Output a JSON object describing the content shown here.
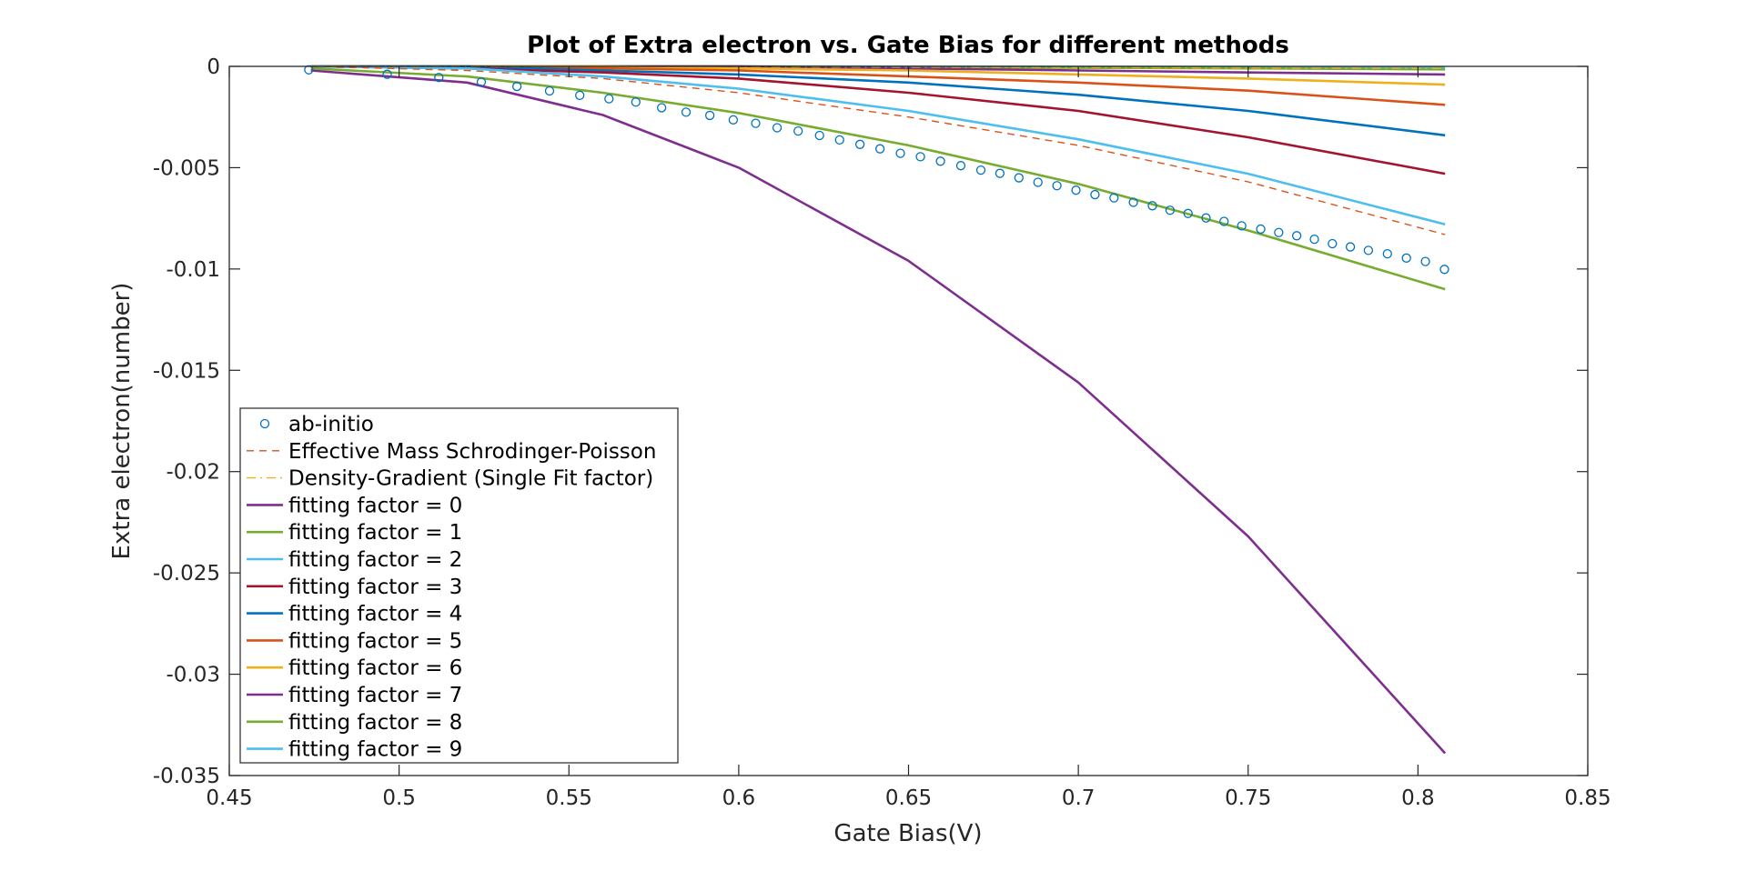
{
  "chart_data": {
    "type": "line",
    "title": "Plot of Extra electron vs. Gate Bias for different methods",
    "xlabel": "Gate Bias(V)",
    "ylabel": "Extra electron(number)",
    "xlim": [
      0.45,
      0.85
    ],
    "ylim": [
      -0.035,
      0
    ],
    "xticks": [
      0.45,
      0.5,
      0.55,
      0.6,
      0.65,
      0.7,
      0.75,
      0.8,
      0.85
    ],
    "xtick_labels": [
      "0.45",
      "0.5",
      "0.55",
      "0.6",
      "0.65",
      "0.7",
      "0.75",
      "0.8",
      "0.85"
    ],
    "yticks": [
      0,
      -0.005,
      -0.01,
      -0.015,
      -0.02,
      -0.025,
      -0.03,
      -0.035
    ],
    "ytick_labels": [
      "0",
      "-0.005",
      "-0.01",
      "-0.015",
      "-0.02",
      "-0.025",
      "-0.03",
      "-0.035"
    ],
    "grid": false,
    "legend_position": "bottom-left",
    "x": [
      0.474,
      0.52,
      0.56,
      0.6,
      0.65,
      0.7,
      0.75,
      0.808
    ],
    "series": [
      {
        "name": "ab-initio",
        "style": "markers",
        "color": "#0072BD",
        "points": [
          [
            0.4734,
            -0.00017
          ],
          [
            0.4965,
            -0.00039
          ],
          [
            0.5117,
            -0.00055
          ],
          [
            0.5242,
            -0.00077
          ],
          [
            0.5347,
            -0.00099
          ],
          [
            0.5443,
            -0.00121
          ],
          [
            0.5532,
            -0.00143
          ],
          [
            0.5618,
            -0.0016
          ],
          [
            0.5697,
            -0.00176
          ],
          [
            0.5773,
            -0.00204
          ],
          [
            0.5845,
            -0.00226
          ],
          [
            0.5915,
            -0.00242
          ],
          [
            0.5984,
            -0.00264
          ],
          [
            0.605,
            -0.00281
          ],
          [
            0.6113,
            -0.00303
          ],
          [
            0.6175,
            -0.00319
          ],
          [
            0.6238,
            -0.00341
          ],
          [
            0.6297,
            -0.00363
          ],
          [
            0.6357,
            -0.00385
          ],
          [
            0.6416,
            -0.00407
          ],
          [
            0.6476,
            -0.00429
          ],
          [
            0.6535,
            -0.00446
          ],
          [
            0.6594,
            -0.00468
          ],
          [
            0.6654,
            -0.0049
          ],
          [
            0.6713,
            -0.00512
          ],
          [
            0.6769,
            -0.00528
          ],
          [
            0.6825,
            -0.0055
          ],
          [
            0.6881,
            -0.00572
          ],
          [
            0.6937,
            -0.00589
          ],
          [
            0.6993,
            -0.00611
          ],
          [
            0.7049,
            -0.00633
          ],
          [
            0.7105,
            -0.00649
          ],
          [
            0.7162,
            -0.00671
          ],
          [
            0.7218,
            -0.00688
          ],
          [
            0.727,
            -0.0071
          ],
          [
            0.7323,
            -0.00726
          ],
          [
            0.7376,
            -0.00748
          ],
          [
            0.7429,
            -0.00765
          ],
          [
            0.7481,
            -0.00787
          ],
          [
            0.7537,
            -0.00803
          ],
          [
            0.759,
            -0.0082
          ],
          [
            0.7643,
            -0.00836
          ],
          [
            0.7695,
            -0.00853
          ],
          [
            0.7748,
            -0.00875
          ],
          [
            0.7801,
            -0.00891
          ],
          [
            0.7854,
            -0.00908
          ],
          [
            0.791,
            -0.00925
          ],
          [
            0.7966,
            -0.00946
          ],
          [
            0.8022,
            -0.00963
          ],
          [
            0.8078,
            -0.01002
          ]
        ]
      },
      {
        "name": "Effective Mass Schrodinger-Poisson",
        "style": "dashed",
        "color": "#D95319",
        "values": [
          0,
          -0.0002,
          -0.0006,
          -0.0013,
          -0.0025,
          -0.0039,
          -0.0057,
          -0.0083
        ]
      },
      {
        "name": "Density-Gradient (Single Fit factor)",
        "style": "dashdot",
        "color": "#EDB120",
        "values": [
          0,
          0,
          0,
          -2e-05,
          -4e-05,
          -6e-05,
          -8e-05,
          -0.0001
        ]
      },
      {
        "name": "fitting factor = 0",
        "style": "solid",
        "color": "#7E2F8E",
        "values": [
          -0.0002,
          -0.0008,
          -0.0024,
          -0.005,
          -0.0096,
          -0.0156,
          -0.0232,
          -0.0339
        ]
      },
      {
        "name": "fitting factor = 1",
        "style": "solid",
        "color": "#77AC30",
        "values": [
          -0.0001,
          -0.0005,
          -0.0013,
          -0.0023,
          -0.0039,
          -0.0058,
          -0.0081,
          -0.011
        ]
      },
      {
        "name": "fitting factor = 2",
        "style": "solid",
        "color": "#4DBEEE",
        "values": [
          0,
          -0.0001,
          -0.0005,
          -0.0011,
          -0.0022,
          -0.0036,
          -0.0053,
          -0.0078
        ]
      },
      {
        "name": "fitting factor = 3",
        "style": "solid",
        "color": "#A2142F",
        "values": [
          0,
          -0.0001,
          -0.0003,
          -0.0006,
          -0.0013,
          -0.0022,
          -0.0035,
          -0.0053
        ]
      },
      {
        "name": "fitting factor = 4",
        "style": "solid",
        "color": "#0072BD",
        "values": [
          0,
          0,
          -0.0002,
          -0.0004,
          -0.0008,
          -0.0014,
          -0.0022,
          -0.0034
        ]
      },
      {
        "name": "fitting factor = 5",
        "style": "solid",
        "color": "#D95319",
        "values": [
          0,
          0,
          -0.0001,
          -0.0002,
          -0.0005,
          -0.0008,
          -0.0012,
          -0.0019
        ]
      },
      {
        "name": "fitting factor = 6",
        "style": "solid",
        "color": "#EDB120",
        "values": [
          0,
          0,
          0,
          -0.0001,
          -0.0002,
          -0.0004,
          -0.0006,
          -0.0009
        ]
      },
      {
        "name": "fitting factor = 7",
        "style": "solid",
        "color": "#7E2F8E",
        "values": [
          0,
          0,
          0,
          0,
          -0.0001,
          -0.0002,
          -0.0003,
          -0.0004
        ]
      },
      {
        "name": "fitting factor = 8",
        "style": "solid",
        "color": "#77AC30",
        "values": [
          0,
          0,
          0,
          0,
          -4e-05,
          -7e-05,
          -0.0001,
          -0.00015
        ]
      },
      {
        "name": "fitting factor = 9",
        "style": "solid",
        "color": "#4DBEEE",
        "values": [
          0,
          0,
          0,
          0,
          -1e-05,
          -2e-05,
          -3e-05,
          -5e-05
        ]
      }
    ]
  }
}
